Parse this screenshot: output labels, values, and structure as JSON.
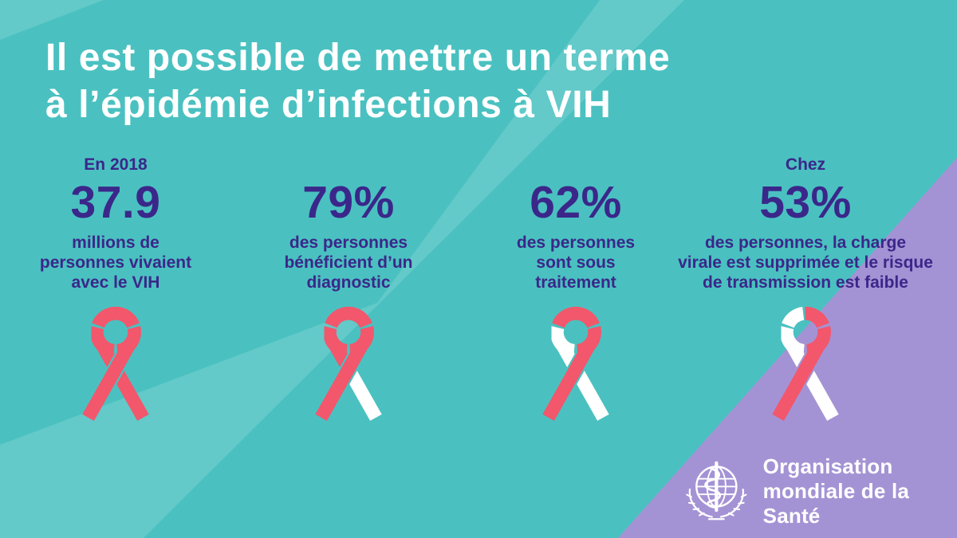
{
  "title": {
    "line1": "Il est possible de mettre un terme",
    "line2": "à l’épidémie d’infections à VIH"
  },
  "stats": [
    {
      "pre": "En 2018",
      "value": "37.9",
      "desc": "millions de\npersonnes vivaient\navec le VIH"
    },
    {
      "pre": "",
      "value": "79%",
      "desc": "des personnes\nbénéficient d’un\ndiagnostic"
    },
    {
      "pre": "",
      "value": "62%",
      "desc": "des personnes\nsont sous\ntraitement"
    },
    {
      "pre": "Chez",
      "value": "53%",
      "desc": "des personnes, la charge\nvirale est supprimée et le risque\nde transmission est faible"
    }
  ],
  "ribbons": [
    {
      "icon": "aids-ribbon-icon",
      "white_parts": []
    },
    {
      "icon": "aids-ribbon-icon",
      "white_parts": [
        "tail_lower"
      ]
    },
    {
      "icon": "aids-ribbon-icon",
      "white_parts": [
        "loop_left",
        "tail_upper",
        "tail_lower"
      ]
    },
    {
      "icon": "aids-ribbon-icon",
      "white_parts": [
        "loop_left",
        "tail_upper",
        "tail_lower",
        "top_arc_left"
      ]
    }
  ],
  "logo": {
    "emblem_icon": "who-emblem-icon",
    "line1": "Organisation",
    "line2": "mondiale de la Santé"
  },
  "colors": {
    "background_teal": "#4AC1C0",
    "background_light_band": "rgba(255,255,255,0.14)",
    "background_purple": "#A493D4",
    "accent_text": "#3B278A",
    "ribbon_red": "#F2576C",
    "ribbon_white": "#FFFFFF"
  },
  "chart_data": {
    "type": "pictogram",
    "title": "Il est possible de mettre un terme à l’épidémie d’infections à VIH",
    "categories": [
      "millions de personnes vivaient avec le VIH (En 2018)",
      "des personnes bénéficient d’un diagnostic",
      "des personnes sont sous traitement",
      "des personnes, la charge virale est supprimée et le risque de transmission est faible (Chez)"
    ],
    "values": [
      37.9,
      79,
      62,
      53
    ],
    "units": [
      "millions",
      "%",
      "%",
      "%"
    ],
    "legend_position": "none",
    "source": "Organisation mondiale de la Santé"
  }
}
